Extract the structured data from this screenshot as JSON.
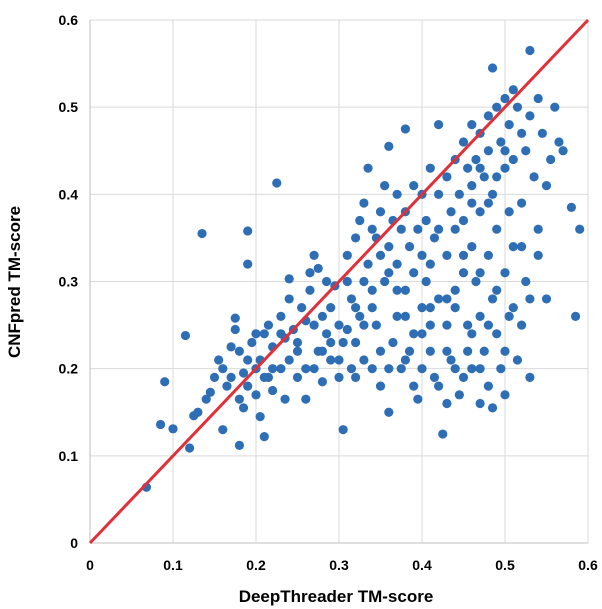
{
  "chart_data": {
    "type": "scatter",
    "title": "",
    "xlabel": "DeepThreader TM-score",
    "ylabel": "CNFpred TM-score",
    "xlim": [
      0,
      0.6
    ],
    "ylim": [
      0,
      0.6
    ],
    "x_ticks": [
      "0",
      "0.1",
      "0.2",
      "0.3",
      "0.4",
      "0.5",
      "0.6"
    ],
    "y_ticks": [
      "0",
      "0.1",
      "0.2",
      "0.3",
      "0.4",
      "0.5",
      "0.6"
    ],
    "grid": true,
    "legend": "none",
    "marker_color": "#2e6eb5",
    "reference_line": {
      "from": [
        0,
        0
      ],
      "to": [
        0.6,
        0.6
      ],
      "color": "#e0313b"
    },
    "series": [
      {
        "points": [
          [
            0.068,
            0.064
          ],
          [
            0.09,
            0.185
          ],
          [
            0.085,
            0.136
          ],
          [
            0.1,
            0.131
          ],
          [
            0.115,
            0.238
          ],
          [
            0.12,
            0.109
          ],
          [
            0.125,
            0.146
          ],
          [
            0.13,
            0.15
          ],
          [
            0.135,
            0.355
          ],
          [
            0.14,
            0.165
          ],
          [
            0.145,
            0.173
          ],
          [
            0.15,
            0.19
          ],
          [
            0.155,
            0.21
          ],
          [
            0.16,
            0.13
          ],
          [
            0.16,
            0.2
          ],
          [
            0.165,
            0.18
          ],
          [
            0.17,
            0.225
          ],
          [
            0.175,
            0.245
          ],
          [
            0.175,
            0.258
          ],
          [
            0.18,
            0.112
          ],
          [
            0.18,
            0.165
          ],
          [
            0.185,
            0.155
          ],
          [
            0.185,
            0.195
          ],
          [
            0.19,
            0.358
          ],
          [
            0.19,
            0.32
          ],
          [
            0.19,
            0.18
          ],
          [
            0.195,
            0.23
          ],
          [
            0.2,
            0.2
          ],
          [
            0.2,
            0.17
          ],
          [
            0.205,
            0.145
          ],
          [
            0.205,
            0.21
          ],
          [
            0.21,
            0.24
          ],
          [
            0.21,
            0.122
          ],
          [
            0.215,
            0.19
          ],
          [
            0.215,
            0.25
          ],
          [
            0.22,
            0.225
          ],
          [
            0.22,
            0.175
          ],
          [
            0.225,
            0.413
          ],
          [
            0.23,
            0.26
          ],
          [
            0.23,
            0.2
          ],
          [
            0.235,
            0.235
          ],
          [
            0.235,
            0.165
          ],
          [
            0.24,
            0.303
          ],
          [
            0.24,
            0.28
          ],
          [
            0.245,
            0.245
          ],
          [
            0.25,
            0.22
          ],
          [
            0.25,
            0.19
          ],
          [
            0.255,
            0.27
          ],
          [
            0.26,
            0.255
          ],
          [
            0.26,
            0.165
          ],
          [
            0.265,
            0.31
          ],
          [
            0.265,
            0.29
          ],
          [
            0.27,
            0.33
          ],
          [
            0.27,
            0.2
          ],
          [
            0.275,
            0.22
          ],
          [
            0.275,
            0.315
          ],
          [
            0.28,
            0.26
          ],
          [
            0.28,
            0.185
          ],
          [
            0.285,
            0.24
          ],
          [
            0.285,
            0.3
          ],
          [
            0.29,
            0.27
          ],
          [
            0.29,
            0.21
          ],
          [
            0.295,
            0.295
          ],
          [
            0.3,
            0.25
          ],
          [
            0.3,
            0.19
          ],
          [
            0.305,
            0.23
          ],
          [
            0.305,
            0.13
          ],
          [
            0.31,
            0.3
          ],
          [
            0.31,
            0.33
          ],
          [
            0.315,
            0.28
          ],
          [
            0.315,
            0.2
          ],
          [
            0.32,
            0.35
          ],
          [
            0.32,
            0.23
          ],
          [
            0.325,
            0.37
          ],
          [
            0.325,
            0.26
          ],
          [
            0.33,
            0.39
          ],
          [
            0.33,
            0.3
          ],
          [
            0.33,
            0.21
          ],
          [
            0.335,
            0.43
          ],
          [
            0.335,
            0.32
          ],
          [
            0.34,
            0.36
          ],
          [
            0.34,
            0.27
          ],
          [
            0.34,
            0.2
          ],
          [
            0.345,
            0.35
          ],
          [
            0.345,
            0.25
          ],
          [
            0.35,
            0.38
          ],
          [
            0.35,
            0.33
          ],
          [
            0.35,
            0.18
          ],
          [
            0.355,
            0.41
          ],
          [
            0.355,
            0.3
          ],
          [
            0.36,
            0.455
          ],
          [
            0.36,
            0.34
          ],
          [
            0.36,
            0.15
          ],
          [
            0.365,
            0.37
          ],
          [
            0.365,
            0.23
          ],
          [
            0.37,
            0.4
          ],
          [
            0.37,
            0.32
          ],
          [
            0.37,
            0.26
          ],
          [
            0.375,
            0.36
          ],
          [
            0.375,
            0.2
          ],
          [
            0.38,
            0.475
          ],
          [
            0.38,
            0.38
          ],
          [
            0.38,
            0.29
          ],
          [
            0.385,
            0.34
          ],
          [
            0.385,
            0.22
          ],
          [
            0.39,
            0.41
          ],
          [
            0.39,
            0.31
          ],
          [
            0.39,
            0.24
          ],
          [
            0.395,
            0.36
          ],
          [
            0.395,
            0.165
          ],
          [
            0.4,
            0.4
          ],
          [
            0.4,
            0.33
          ],
          [
            0.4,
            0.27
          ],
          [
            0.4,
            0.2
          ],
          [
            0.405,
            0.37
          ],
          [
            0.405,
            0.3
          ],
          [
            0.41,
            0.43
          ],
          [
            0.41,
            0.25
          ],
          [
            0.41,
            0.22
          ],
          [
            0.415,
            0.35
          ],
          [
            0.415,
            0.19
          ],
          [
            0.42,
            0.48
          ],
          [
            0.42,
            0.4
          ],
          [
            0.42,
            0.28
          ],
          [
            0.425,
            0.125
          ],
          [
            0.43,
            0.42
          ],
          [
            0.43,
            0.33
          ],
          [
            0.43,
            0.25
          ],
          [
            0.435,
            0.38
          ],
          [
            0.435,
            0.21
          ],
          [
            0.44,
            0.44
          ],
          [
            0.44,
            0.36
          ],
          [
            0.44,
            0.29
          ],
          [
            0.445,
            0.4
          ],
          [
            0.445,
            0.17
          ],
          [
            0.45,
            0.46
          ],
          [
            0.45,
            0.37
          ],
          [
            0.45,
            0.31
          ],
          [
            0.455,
            0.43
          ],
          [
            0.455,
            0.25
          ],
          [
            0.46,
            0.48
          ],
          [
            0.46,
            0.41
          ],
          [
            0.46,
            0.34
          ],
          [
            0.46,
            0.2
          ],
          [
            0.465,
            0.44
          ],
          [
            0.465,
            0.3
          ],
          [
            0.47,
            0.47
          ],
          [
            0.47,
            0.38
          ],
          [
            0.47,
            0.26
          ],
          [
            0.475,
            0.42
          ],
          [
            0.475,
            0.22
          ],
          [
            0.48,
            0.49
          ],
          [
            0.48,
            0.45
          ],
          [
            0.48,
            0.33
          ],
          [
            0.48,
            0.18
          ],
          [
            0.485,
            0.545
          ],
          [
            0.485,
            0.4
          ],
          [
            0.485,
            0.28
          ],
          [
            0.49,
            0.5
          ],
          [
            0.49,
            0.36
          ],
          [
            0.49,
            0.24
          ],
          [
            0.495,
            0.46
          ],
          [
            0.495,
            0.2
          ],
          [
            0.5,
            0.51
          ],
          [
            0.5,
            0.43
          ],
          [
            0.5,
            0.31
          ],
          [
            0.505,
            0.48
          ],
          [
            0.505,
            0.38
          ],
          [
            0.51,
            0.52
          ],
          [
            0.51,
            0.44
          ],
          [
            0.51,
            0.27
          ],
          [
            0.515,
            0.5
          ],
          [
            0.515,
            0.21
          ],
          [
            0.52,
            0.47
          ],
          [
            0.52,
            0.34
          ],
          [
            0.525,
            0.45
          ],
          [
            0.525,
            0.3
          ],
          [
            0.53,
            0.565
          ],
          [
            0.53,
            0.49
          ],
          [
            0.53,
            0.19
          ],
          [
            0.535,
            0.42
          ],
          [
            0.54,
            0.51
          ],
          [
            0.54,
            0.33
          ],
          [
            0.545,
            0.47
          ],
          [
            0.55,
            0.28
          ],
          [
            0.555,
            0.44
          ],
          [
            0.56,
            0.5
          ],
          [
            0.565,
            0.46
          ],
          [
            0.57,
            0.45
          ],
          [
            0.58,
            0.385
          ],
          [
            0.585,
            0.26
          ],
          [
            0.59,
            0.36
          ],
          [
            0.31,
            0.245
          ],
          [
            0.32,
            0.19
          ],
          [
            0.35,
            0.22
          ],
          [
            0.36,
            0.2
          ],
          [
            0.38,
            0.21
          ],
          [
            0.39,
            0.18
          ],
          [
            0.4,
            0.24
          ],
          [
            0.41,
            0.32
          ],
          [
            0.42,
            0.36
          ],
          [
            0.43,
            0.22
          ],
          [
            0.44,
            0.27
          ],
          [
            0.45,
            0.33
          ],
          [
            0.46,
            0.24
          ],
          [
            0.47,
            0.31
          ],
          [
            0.48,
            0.25
          ],
          [
            0.49,
            0.29
          ],
          [
            0.5,
            0.22
          ],
          [
            0.51,
            0.34
          ],
          [
            0.52,
            0.39
          ],
          [
            0.46,
            0.39
          ],
          [
            0.47,
            0.43
          ],
          [
            0.48,
            0.39
          ],
          [
            0.49,
            0.42
          ],
          [
            0.5,
            0.45
          ],
          [
            0.43,
            0.28
          ],
          [
            0.38,
            0.26
          ],
          [
            0.37,
            0.29
          ],
          [
            0.36,
            0.31
          ],
          [
            0.34,
            0.29
          ],
          [
            0.33,
            0.25
          ],
          [
            0.32,
            0.27
          ],
          [
            0.3,
            0.21
          ],
          [
            0.29,
            0.23
          ],
          [
            0.28,
            0.22
          ],
          [
            0.27,
            0.25
          ],
          [
            0.26,
            0.2
          ],
          [
            0.25,
            0.23
          ],
          [
            0.24,
            0.21
          ],
          [
            0.23,
            0.24
          ],
          [
            0.22,
            0.2
          ],
          [
            0.21,
            0.19
          ],
          [
            0.2,
            0.24
          ],
          [
            0.19,
            0.21
          ],
          [
            0.18,
            0.22
          ],
          [
            0.17,
            0.19
          ],
          [
            0.41,
            0.27
          ],
          [
            0.44,
            0.2
          ],
          [
            0.45,
            0.19
          ],
          [
            0.47,
            0.2
          ],
          [
            0.52,
            0.25
          ],
          [
            0.53,
            0.28
          ],
          [
            0.54,
            0.36
          ],
          [
            0.55,
            0.41
          ],
          [
            0.47,
            0.16
          ],
          [
            0.485,
            0.155
          ],
          [
            0.5,
            0.17
          ],
          [
            0.42,
            0.18
          ],
          [
            0.43,
            0.16
          ],
          [
            0.455,
            0.22
          ],
          [
            0.505,
            0.26
          ]
        ]
      }
    ]
  }
}
